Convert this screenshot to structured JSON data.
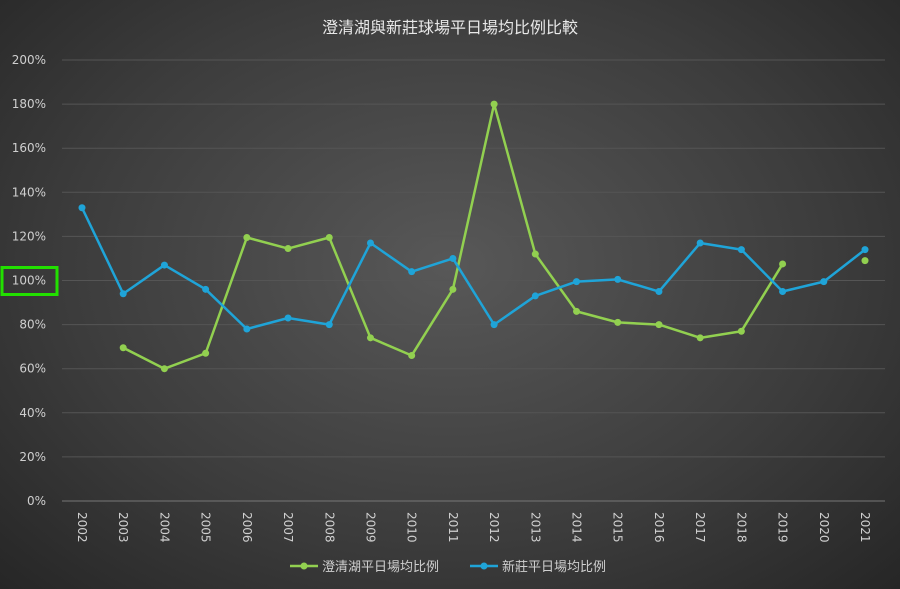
{
  "chart_data": {
    "type": "line",
    "title": "澄清湖與新莊球場平日場均比例比較",
    "xlabel": "",
    "ylabel": "",
    "ylim": [
      0,
      200
    ],
    "y_ticks": [
      "0%",
      "20%",
      "40%",
      "60%",
      "80%",
      "100%",
      "120%",
      "140%",
      "160%",
      "180%",
      "200%"
    ],
    "categories": [
      "2002",
      "2003",
      "2004",
      "2005",
      "2006",
      "2007",
      "2008",
      "2009",
      "2010",
      "2011",
      "2012",
      "2013",
      "2014",
      "2015",
      "2016",
      "2017",
      "2018",
      "2019",
      "2020",
      "2021"
    ],
    "grid": true,
    "legend_position": "bottom",
    "highlighted_tick": "100%",
    "series": [
      {
        "name": "澄清湖平日場均比例",
        "color": "#92d050",
        "values": [
          null,
          69.5,
          60,
          67,
          119.5,
          114.5,
          119.5,
          74,
          66,
          96,
          180,
          112,
          86,
          81,
          80,
          74,
          77,
          107.5,
          null,
          109
        ]
      },
      {
        "name": "新莊平日場均比例",
        "color": "#1fa4d8",
        "values": [
          133,
          94,
          107,
          96,
          78,
          83,
          80,
          117,
          104,
          110,
          80,
          93,
          99.5,
          100.5,
          95,
          117,
          114,
          95,
          99.5,
          114
        ]
      }
    ]
  }
}
